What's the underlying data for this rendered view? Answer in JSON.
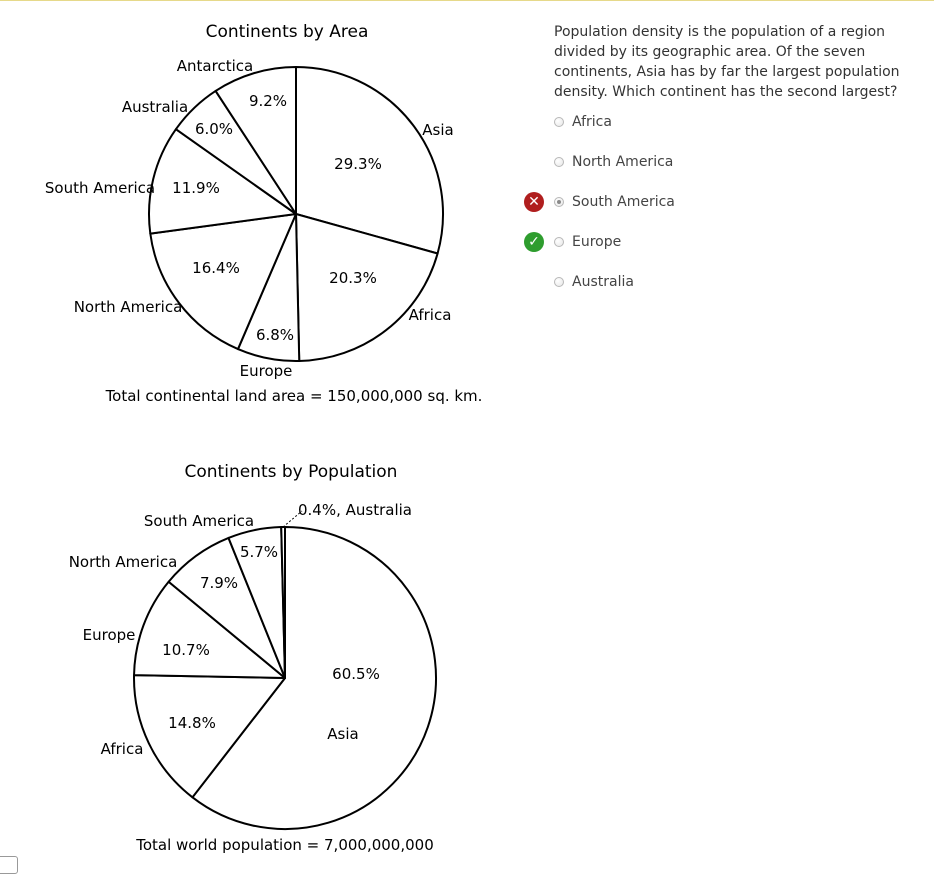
{
  "chart_data": [
    {
      "type": "pie",
      "title": "Continents by Area",
      "footer": "Total continental land area = 150,000,000 sq. km.",
      "slices": [
        {
          "label": "Asia",
          "pct_label": "29.3%",
          "value": 29.3
        },
        {
          "label": "Africa",
          "pct_label": "20.3%",
          "value": 20.3
        },
        {
          "label": "Europe",
          "pct_label": "6.8%",
          "value": 6.8
        },
        {
          "label": "North America",
          "pct_label": "16.4%",
          "value": 16.4
        },
        {
          "label": "South America",
          "pct_label": "11.9%",
          "value": 11.9
        },
        {
          "label": "Australia",
          "pct_label": "6.0%",
          "value": 6.0
        },
        {
          "label": "Antarctica",
          "pct_label": "9.2%",
          "value": 9.2
        }
      ]
    },
    {
      "type": "pie",
      "title": "Continents by Population",
      "footer": "Total world population = 7,000,000,000",
      "slices": [
        {
          "label": "Asia",
          "pct_label": "60.5%",
          "value": 60.5
        },
        {
          "label": "Africa",
          "pct_label": "14.8%",
          "value": 14.8
        },
        {
          "label": "Europe",
          "pct_label": "10.7%",
          "value": 10.7
        },
        {
          "label": "North America",
          "pct_label": "7.9%",
          "value": 7.9
        },
        {
          "label": "South America",
          "pct_label": "5.7%",
          "value": 5.7
        },
        {
          "label": "Australia",
          "pct_label": "0.4%, Australia",
          "value": 0.4
        }
      ]
    }
  ],
  "question": {
    "text": "Population density is the population of a region divided by its geographic area. Of the seven continents, Asia has by far the largest population density. Which continent has the second largest?",
    "choices": [
      {
        "label": "Africa",
        "selected": false,
        "mark": ""
      },
      {
        "label": "North America",
        "selected": false,
        "mark": ""
      },
      {
        "label": "South America",
        "selected": true,
        "mark": "wrong"
      },
      {
        "label": "Europe",
        "selected": false,
        "mark": "correct"
      },
      {
        "label": "Australia",
        "selected": false,
        "mark": ""
      }
    ]
  },
  "colors": {
    "wrong": "#b01e1e",
    "correct": "#2e9d2e"
  },
  "icons": {
    "wrong": "x-circle-icon",
    "correct": "check-circle-icon"
  }
}
